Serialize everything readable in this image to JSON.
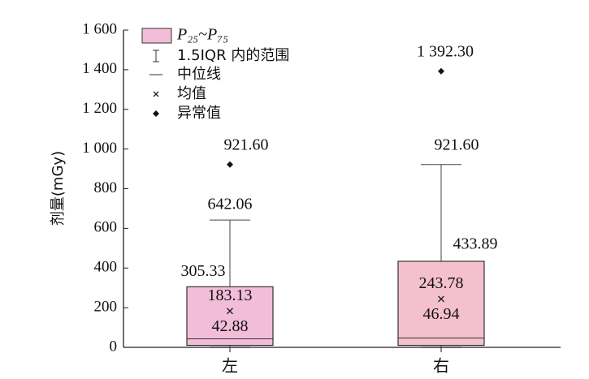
{
  "chart_data": {
    "type": "box",
    "y_label": "剂量(mGy)",
    "categories": [
      "左",
      "右"
    ],
    "ylim": [
      0,
      1600
    ],
    "yticks": [
      0,
      200,
      400,
      600,
      800,
      {
        "value": 1000,
        "label": "1 000"
      },
      {
        "value": 1200,
        "label": "1 200"
      },
      {
        "value": 1400,
        "label": "1 400"
      },
      {
        "value": 1600,
        "label": "1 600"
      }
    ],
    "legend": [
      "P₂₅~P₇₅",
      "1.5IQR 内的范围",
      "中位线",
      "均值",
      "异常值"
    ],
    "boxes": [
      {
        "color": "#f2bdd8",
        "whislo": 2,
        "q1": 10,
        "median": 42.88,
        "q3": 305.33,
        "whishi": 642.06,
        "mean": 183.13,
        "outlier": 921.6,
        "value_labels": {
          "q3": "305.33",
          "mean": "183.13",
          "median": "42.88",
          "whishi": "642.06",
          "outlier": "921.60"
        }
      },
      {
        "color": "#f5c0cd",
        "whislo": 2,
        "q1": 10,
        "median": 46.94,
        "q3": 433.89,
        "whishi": 921.6,
        "mean": 243.78,
        "outlier": 1392.3,
        "value_labels": {
          "q3": "433.89",
          "mean": "243.78",
          "median": "46.94",
          "whishi": "921.60",
          "outlier": "1 392.30"
        }
      }
    ]
  }
}
